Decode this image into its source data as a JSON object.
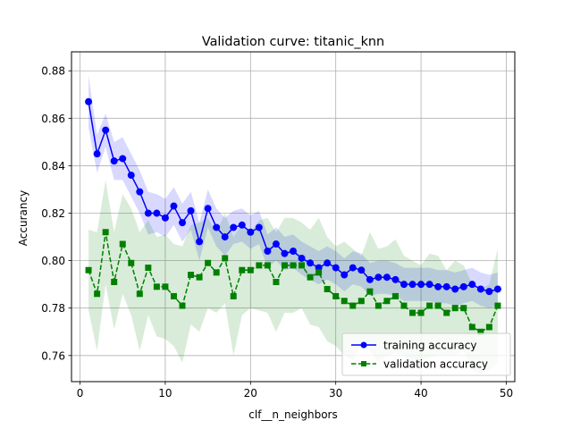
{
  "chart_data": {
    "type": "line",
    "title": "Validation curve: titanic_knn",
    "xlabel": "clf__n_neighbors",
    "ylabel": "Accurancy",
    "xlim": [
      -1,
      51
    ],
    "ylim": [
      0.749,
      0.888
    ],
    "xticks": [
      0,
      10,
      20,
      30,
      40,
      50
    ],
    "yticks": [
      0.76,
      0.78,
      0.8,
      0.82,
      0.84,
      0.86,
      0.88
    ],
    "grid": true,
    "legend_position": "lower-right",
    "x": [
      1,
      2,
      3,
      4,
      5,
      6,
      7,
      8,
      9,
      10,
      11,
      12,
      13,
      14,
      15,
      16,
      17,
      18,
      19,
      20,
      21,
      22,
      23,
      24,
      25,
      26,
      27,
      28,
      29,
      30,
      31,
      32,
      33,
      34,
      35,
      36,
      37,
      38,
      39,
      40,
      41,
      42,
      43,
      44,
      45,
      46,
      47,
      48,
      49
    ],
    "series": [
      {
        "name": "training accuracy",
        "color": "#0000ff",
        "marker": "circle",
        "linestyle": "solid",
        "values": [
          0.867,
          0.845,
          0.855,
          0.842,
          0.843,
          0.836,
          0.829,
          0.82,
          0.82,
          0.818,
          0.823,
          0.816,
          0.821,
          0.808,
          0.822,
          0.814,
          0.81,
          0.814,
          0.815,
          0.812,
          0.814,
          0.804,
          0.807,
          0.803,
          0.804,
          0.801,
          0.799,
          0.797,
          0.799,
          0.797,
          0.794,
          0.797,
          0.796,
          0.792,
          0.793,
          0.793,
          0.792,
          0.79,
          0.79,
          0.79,
          0.79,
          0.789,
          0.789,
          0.788,
          0.789,
          0.79,
          0.788,
          0.787,
          0.788
        ],
        "band_upper": [
          0.878,
          0.853,
          0.862,
          0.85,
          0.852,
          0.845,
          0.838,
          0.829,
          0.828,
          0.826,
          0.831,
          0.824,
          0.829,
          0.816,
          0.83,
          0.822,
          0.818,
          0.821,
          0.822,
          0.819,
          0.821,
          0.811,
          0.814,
          0.81,
          0.811,
          0.808,
          0.806,
          0.804,
          0.806,
          0.804,
          0.801,
          0.804,
          0.803,
          0.799,
          0.8,
          0.8,
          0.799,
          0.797,
          0.797,
          0.797,
          0.797,
          0.796,
          0.796,
          0.795,
          0.796,
          0.797,
          0.795,
          0.794,
          0.795
        ],
        "band_lower": [
          0.856,
          0.837,
          0.848,
          0.834,
          0.834,
          0.827,
          0.82,
          0.811,
          0.812,
          0.81,
          0.815,
          0.808,
          0.813,
          0.8,
          0.814,
          0.806,
          0.802,
          0.807,
          0.808,
          0.805,
          0.807,
          0.797,
          0.8,
          0.796,
          0.797,
          0.794,
          0.792,
          0.79,
          0.792,
          0.79,
          0.787,
          0.79,
          0.789,
          0.785,
          0.786,
          0.786,
          0.785,
          0.783,
          0.783,
          0.783,
          0.783,
          0.782,
          0.782,
          0.781,
          0.782,
          0.783,
          0.781,
          0.78,
          0.781
        ]
      },
      {
        "name": "validation accuracy",
        "color": "#008000",
        "marker": "square",
        "linestyle": "dashed",
        "values": [
          0.796,
          0.786,
          0.812,
          0.791,
          0.807,
          0.799,
          0.786,
          0.797,
          0.789,
          0.789,
          0.785,
          0.781,
          0.794,
          0.793,
          0.799,
          0.795,
          0.801,
          0.785,
          0.796,
          0.796,
          0.798,
          0.798,
          0.791,
          0.798,
          0.798,
          0.798,
          0.793,
          0.795,
          0.788,
          0.785,
          0.783,
          0.781,
          0.783,
          0.787,
          0.781,
          0.783,
          0.785,
          0.781,
          0.778,
          0.778,
          0.781,
          0.781,
          0.778,
          0.78,
          0.78,
          0.772,
          0.77,
          0.772,
          0.781
        ],
        "band_upper": [
          0.813,
          0.812,
          0.834,
          0.812,
          0.828,
          0.822,
          0.812,
          0.817,
          0.81,
          0.811,
          0.807,
          0.806,
          0.815,
          0.816,
          0.818,
          0.812,
          0.82,
          0.81,
          0.815,
          0.812,
          0.817,
          0.818,
          0.812,
          0.818,
          0.818,
          0.816,
          0.813,
          0.818,
          0.81,
          0.806,
          0.808,
          0.805,
          0.802,
          0.812,
          0.805,
          0.806,
          0.809,
          0.802,
          0.8,
          0.798,
          0.803,
          0.802,
          0.796,
          0.8,
          0.798,
          0.79,
          0.788,
          0.79,
          0.805
        ],
        "band_lower": [
          0.779,
          0.762,
          0.79,
          0.771,
          0.786,
          0.777,
          0.762,
          0.777,
          0.768,
          0.767,
          0.764,
          0.757,
          0.773,
          0.77,
          0.78,
          0.778,
          0.782,
          0.76,
          0.777,
          0.78,
          0.779,
          0.778,
          0.77,
          0.778,
          0.778,
          0.78,
          0.773,
          0.772,
          0.766,
          0.764,
          0.76,
          0.758,
          0.764,
          0.762,
          0.757,
          0.76,
          0.761,
          0.76,
          0.757,
          0.758,
          0.759,
          0.76,
          0.76,
          0.76,
          0.762,
          0.754,
          0.752,
          0.754,
          0.757
        ]
      }
    ]
  }
}
